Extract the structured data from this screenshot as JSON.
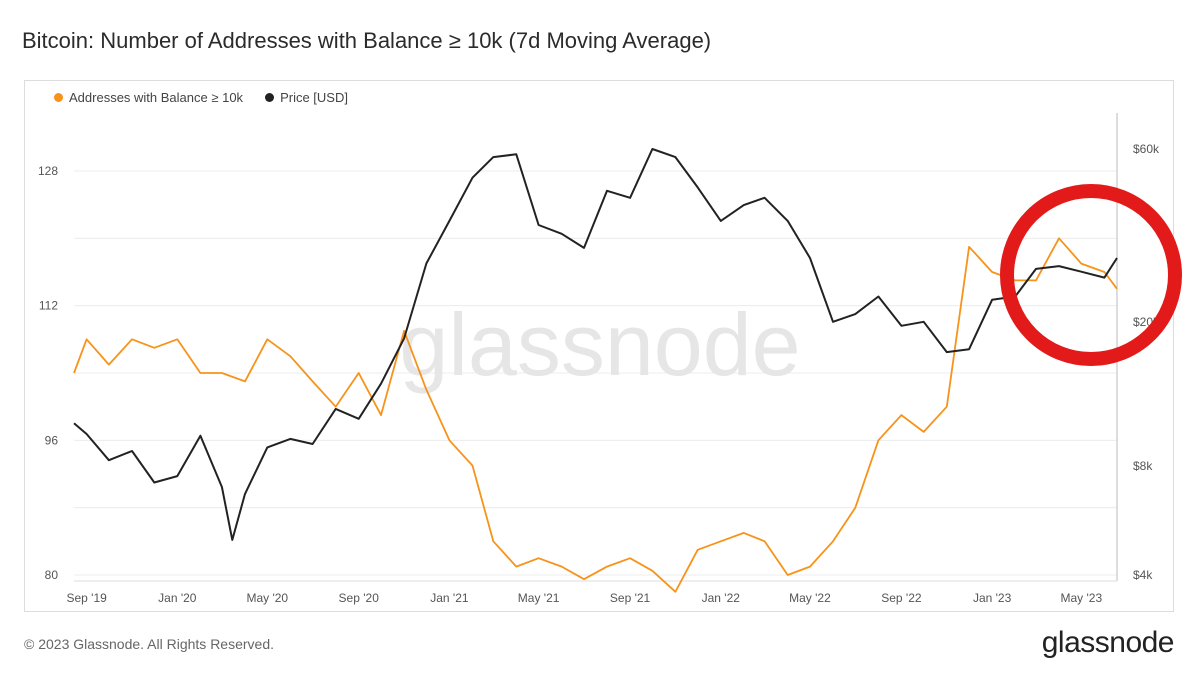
{
  "title": "Bitcoin: Number of Addresses with Balance ≥ 10k (7d Moving Average)",
  "footer": "© 2023 Glassnode. All Rights Reserved.",
  "brand": "glassnode",
  "watermark": "glassnode",
  "chart_data": {
    "type": "line",
    "x_ticks": [
      "Sep '19",
      "Jan '20",
      "May '20",
      "Sep '20",
      "Jan '21",
      "May '21",
      "Sep '21",
      "Jan '22",
      "May '22",
      "Sep '22",
      "Jan '23",
      "May '23"
    ],
    "y_left_ticks": [
      "80",
      "96",
      "112",
      "128"
    ],
    "y_right_ticks": [
      "$4k",
      "$8k",
      "$20k",
      "$60k"
    ],
    "ylim_left": [
      80,
      128
    ],
    "ylim_right_usd": [
      4000,
      60000
    ],
    "y_right_scale": "log",
    "grid": true,
    "legend_position": "top-left",
    "series": [
      {
        "name": "Addresses with Balance ≥ 10k",
        "axis": "left",
        "color": "#f7931a",
        "x": [
          "2019-08-15",
          "2019-09-01",
          "2019-10-01",
          "2019-11-01",
          "2019-12-01",
          "2020-01-01",
          "2020-02-01",
          "2020-03-01",
          "2020-04-01",
          "2020-05-01",
          "2020-06-01",
          "2020-07-01",
          "2020-08-01",
          "2020-09-01",
          "2020-10-01",
          "2020-11-01",
          "2020-12-01",
          "2021-01-01",
          "2021-02-01",
          "2021-03-01",
          "2021-04-01",
          "2021-05-01",
          "2021-06-01",
          "2021-07-01",
          "2021-08-01",
          "2021-09-01",
          "2021-10-01",
          "2021-11-01",
          "2021-12-01",
          "2022-01-01",
          "2022-02-01",
          "2022-03-01",
          "2022-04-01",
          "2022-05-01",
          "2022-06-01",
          "2022-07-01",
          "2022-08-01",
          "2022-09-01",
          "2022-10-01",
          "2022-11-01",
          "2022-12-01",
          "2023-01-01",
          "2023-02-01",
          "2023-03-01",
          "2023-04-01",
          "2023-05-01",
          "2023-06-01",
          "2023-06-18"
        ],
        "values": [
          104,
          108,
          105,
          108,
          107,
          108,
          104,
          104,
          103,
          108,
          106,
          103,
          100,
          104,
          99,
          109,
          102,
          96,
          93,
          84,
          81,
          82,
          81,
          79.5,
          81,
          82,
          80.5,
          78,
          83,
          84,
          85,
          84,
          80,
          81,
          84,
          88,
          96,
          99,
          97,
          100,
          119,
          116,
          115,
          115,
          120,
          117,
          116,
          114
        ]
      },
      {
        "name": "Price [USD]",
        "axis": "right",
        "color": "#222222",
        "x": [
          "2019-08-15",
          "2019-09-01",
          "2019-10-01",
          "2019-11-01",
          "2019-12-01",
          "2020-01-01",
          "2020-02-01",
          "2020-03-01",
          "2020-03-15",
          "2020-04-01",
          "2020-05-01",
          "2020-06-01",
          "2020-07-01",
          "2020-08-01",
          "2020-09-01",
          "2020-10-01",
          "2020-11-01",
          "2020-12-01",
          "2021-01-01",
          "2021-02-01",
          "2021-03-01",
          "2021-04-01",
          "2021-05-01",
          "2021-06-01",
          "2021-07-01",
          "2021-08-01",
          "2021-09-01",
          "2021-10-01",
          "2021-11-01",
          "2021-12-01",
          "2022-01-01",
          "2022-02-01",
          "2022-03-01",
          "2022-04-01",
          "2022-05-01",
          "2022-06-01",
          "2022-07-01",
          "2022-08-01",
          "2022-09-01",
          "2022-10-01",
          "2022-11-01",
          "2022-12-01",
          "2023-01-01",
          "2023-02-01",
          "2023-03-01",
          "2023-04-01",
          "2023-05-01",
          "2023-06-01",
          "2023-06-18"
        ],
        "values": [
          10500,
          9800,
          8300,
          8800,
          7200,
          7500,
          9700,
          7000,
          5000,
          6700,
          9000,
          9500,
          9200,
          11500,
          10800,
          13500,
          18000,
          29000,
          38000,
          50000,
          57000,
          58000,
          37000,
          35000,
          32000,
          46000,
          44000,
          60000,
          57000,
          47000,
          38000,
          42000,
          44000,
          38000,
          30000,
          20000,
          21000,
          23500,
          19500,
          20000,
          16500,
          16800,
          23000,
          23500,
          28000,
          28500,
          27500,
          26500,
          30000
        ]
      }
    ]
  }
}
